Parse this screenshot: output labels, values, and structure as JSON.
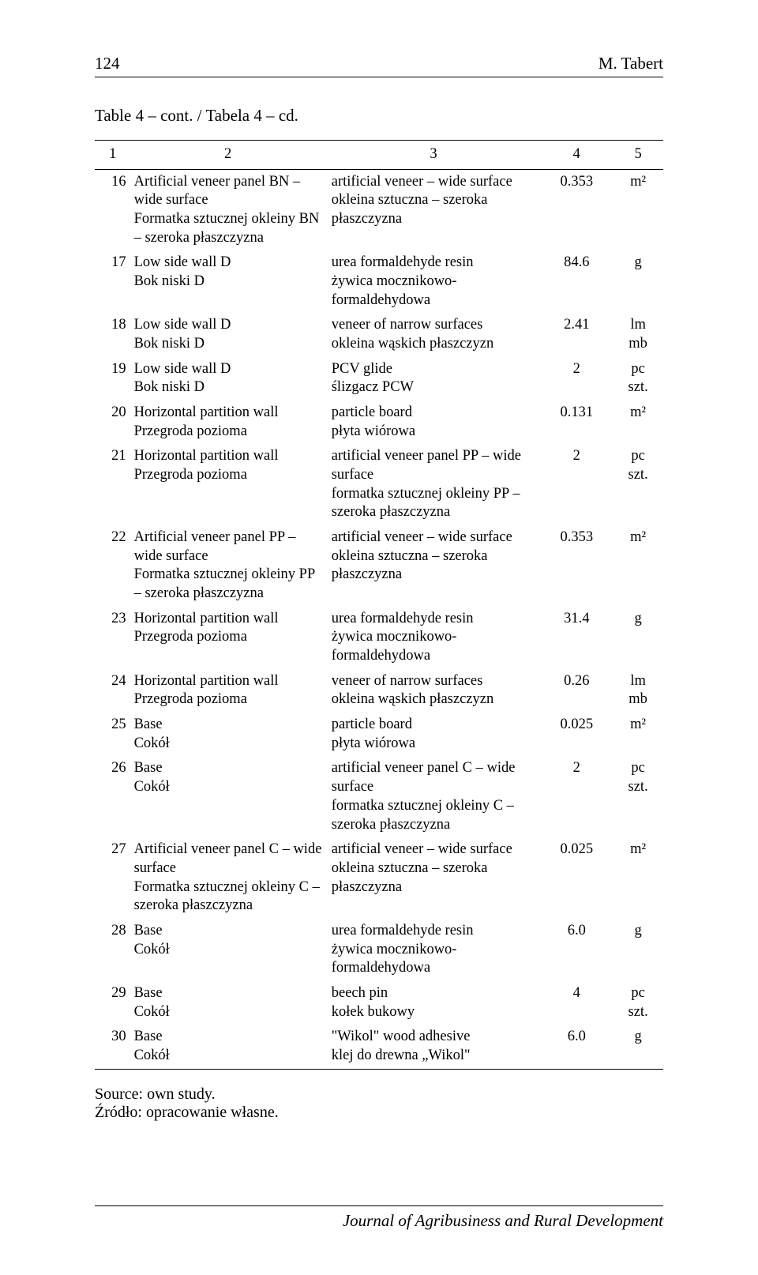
{
  "page_number": "124",
  "author": "M. Tabert",
  "caption": "Table 4 – cont. / Tabela 4 – cd.",
  "head": {
    "c1": "1",
    "c2": "2",
    "c3": "3",
    "c4": "4",
    "c5": "5"
  },
  "rows": [
    {
      "n": "16",
      "c2a": "Artificial veneer panel BN – wide surface",
      "c2b": "Formatka sztucznej okleiny BN – szeroka płaszczyzna",
      "c3a": "artificial veneer – wide surface",
      "c3b": "okleina sztuczna – szeroka płaszczyzna",
      "c4": "0.353",
      "c5a": "m²",
      "c5b": ""
    },
    {
      "n": "17",
      "c2a": "Low side wall D",
      "c2b": "Bok niski D",
      "c3a": "urea formaldehyde resin",
      "c3b": "żywica mocznikowo-formaldehydowa",
      "c4": "84.6",
      "c5a": "g",
      "c5b": ""
    },
    {
      "n": "18",
      "c2a": "Low side wall D",
      "c2b": "Bok niski D",
      "c3a": "veneer of narrow surfaces",
      "c3b": "okleina wąskich płaszczyzn",
      "c4": "2.41",
      "c5a": "lm",
      "c5b": "mb"
    },
    {
      "n": "19",
      "c2a": "Low side wall D",
      "c2b": "Bok niski D",
      "c3a": "PCV glide",
      "c3b": "ślizgacz PCW",
      "c4": "2",
      "c5a": "pc",
      "c5b": "szt."
    },
    {
      "n": "20",
      "c2a": "Horizontal partition wall",
      "c2b": "Przegroda pozioma",
      "c3a": "particle board",
      "c3b": "płyta wiórowa",
      "c4": "0.131",
      "c5a": "m²",
      "c5b": ""
    },
    {
      "n": "21",
      "c2a": "Horizontal partition wall",
      "c2b": "Przegroda pozioma",
      "c3a": "artificial veneer panel PP – wide surface",
      "c3b": "formatka sztucznej okleiny PP – szeroka płaszczyzna",
      "c4": "2",
      "c5a": "pc",
      "c5b": "szt."
    },
    {
      "n": "22",
      "c2a": "Artificial veneer panel PP – wide surface",
      "c2b": "Formatka sztucznej okleiny PP – szeroka płaszczyzna",
      "c3a": "artificial veneer – wide surface",
      "c3b": "okleina sztuczna – szeroka płaszczyzna",
      "c4": "0.353",
      "c5a": "m²",
      "c5b": ""
    },
    {
      "n": "23",
      "c2a": "Horizontal partition wall",
      "c2b": "Przegroda pozioma",
      "c3a": "urea formaldehyde resin",
      "c3b": "żywica mocznikowo-formaldehydowa",
      "c4": "31.4",
      "c5a": "g",
      "c5b": ""
    },
    {
      "n": "24",
      "c2a": "Horizontal partition wall",
      "c2b": "Przegroda pozioma",
      "c3a": "veneer of narrow surfaces",
      "c3b": "okleina wąskich płaszczyzn",
      "c4": "0.26",
      "c5a": "lm",
      "c5b": "mb"
    },
    {
      "n": "25",
      "c2a": "Base",
      "c2b": "Cokół",
      "c3a": "particle board",
      "c3b": "płyta wiórowa",
      "c4": "0.025",
      "c5a": "m²",
      "c5b": ""
    },
    {
      "n": "26",
      "c2a": "Base",
      "c2b": "Cokół",
      "c3a": "artificial veneer panel C – wide surface",
      "c3b": "formatka sztucznej okleiny C – szeroka płaszczyzna",
      "c4": "2",
      "c5a": "pc",
      "c5b": "szt."
    },
    {
      "n": "27",
      "c2a": "Artificial veneer panel C – wide surface",
      "c2b": "Formatka sztucznej okleiny C – szeroka płaszczyzna",
      "c3a": "artificial veneer – wide surface",
      "c3b": "okleina sztuczna – szeroka płaszczyzna",
      "c4": "0.025",
      "c5a": "m²",
      "c5b": ""
    },
    {
      "n": "28",
      "c2a": "Base",
      "c2b": "Cokół",
      "c3a": "urea formaldehyde resin",
      "c3b": "żywica mocznikowo-formaldehydowa",
      "c4": "6.0",
      "c5a": "g",
      "c5b": ""
    },
    {
      "n": "29",
      "c2a": "Base",
      "c2b": "Cokół",
      "c3a": "beech pin",
      "c3b": "kołek bukowy",
      "c4": "4",
      "c5a": "pc",
      "c5b": "szt."
    },
    {
      "n": "30",
      "c2a": "Base",
      "c2b": "Cokół",
      "c3a": "\"Wikol\" wood adhesive",
      "c3b": "klej do drewna „Wikol\"",
      "c4": "6.0",
      "c5a": "g",
      "c5b": ""
    }
  ],
  "source_en": "Source: own study.",
  "source_pl": "Źródło: opracowanie własne.",
  "footer": "Journal of Agribusiness and Rural Development"
}
